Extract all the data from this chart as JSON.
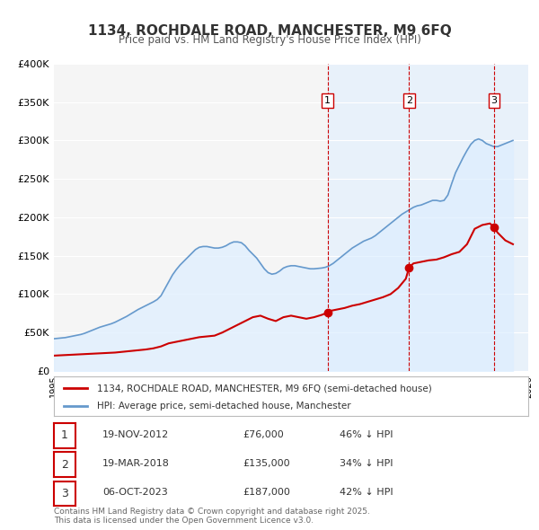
{
  "title": "1134, ROCHDALE ROAD, MANCHESTER, M9 6FQ",
  "subtitle": "Price paid vs. HM Land Registry's House Price Index (HPI)",
  "legend_label_red": "1134, ROCHDALE ROAD, MANCHESTER, M9 6FQ (semi-detached house)",
  "legend_label_blue": "HPI: Average price, semi-detached house, Manchester",
  "footer": "Contains HM Land Registry data © Crown copyright and database right 2025.\nThis data is licensed under the Open Government Licence v3.0.",
  "ylabel": "",
  "ylim": [
    0,
    400000
  ],
  "yticks": [
    0,
    50000,
    100000,
    150000,
    200000,
    250000,
    300000,
    350000,
    400000
  ],
  "ytick_labels": [
    "£0",
    "£50K",
    "£100K",
    "£150K",
    "£200K",
    "£250K",
    "£300K",
    "£350K",
    "£400K"
  ],
  "xlim_start": 1995.0,
  "xlim_end": 2026.0,
  "background_color": "#ffffff",
  "plot_bg_color": "#f5f5f5",
  "grid_color": "#ffffff",
  "sale_color": "#cc0000",
  "hpi_color": "#6699cc",
  "hpi_fill_color": "#ddeeff",
  "vline_color": "#cc0000",
  "vline_shade_color": "#ddeeff",
  "transactions": [
    {
      "num": 1,
      "date_dec": 2012.89,
      "price": 76000,
      "label": "19-NOV-2012",
      "pct": "46%"
    },
    {
      "num": 2,
      "date_dec": 2018.22,
      "price": 135000,
      "label": "19-MAR-2018",
      "pct": "34%"
    },
    {
      "num": 3,
      "date_dec": 2023.76,
      "price": 187000,
      "label": "06-OCT-2023",
      "pct": "42%"
    }
  ],
  "hpi_data": {
    "years": [
      1995.0,
      1995.25,
      1995.5,
      1995.75,
      1996.0,
      1996.25,
      1996.5,
      1996.75,
      1997.0,
      1997.25,
      1997.5,
      1997.75,
      1998.0,
      1998.25,
      1998.5,
      1998.75,
      1999.0,
      1999.25,
      1999.5,
      1999.75,
      2000.0,
      2000.25,
      2000.5,
      2000.75,
      2001.0,
      2001.25,
      2001.5,
      2001.75,
      2002.0,
      2002.25,
      2002.5,
      2002.75,
      2003.0,
      2003.25,
      2003.5,
      2003.75,
      2004.0,
      2004.25,
      2004.5,
      2004.75,
      2005.0,
      2005.25,
      2005.5,
      2005.75,
      2006.0,
      2006.25,
      2006.5,
      2006.75,
      2007.0,
      2007.25,
      2007.5,
      2007.75,
      2008.0,
      2008.25,
      2008.5,
      2008.75,
      2009.0,
      2009.25,
      2009.5,
      2009.75,
      2010.0,
      2010.25,
      2010.5,
      2010.75,
      2011.0,
      2011.25,
      2011.5,
      2011.75,
      2012.0,
      2012.25,
      2012.5,
      2012.75,
      2013.0,
      2013.25,
      2013.5,
      2013.75,
      2014.0,
      2014.25,
      2014.5,
      2014.75,
      2015.0,
      2015.25,
      2015.5,
      2015.75,
      2016.0,
      2016.25,
      2016.5,
      2016.75,
      2017.0,
      2017.25,
      2017.5,
      2017.75,
      2018.0,
      2018.25,
      2018.5,
      2018.75,
      2019.0,
      2019.25,
      2019.5,
      2019.75,
      2020.0,
      2020.25,
      2020.5,
      2020.75,
      2021.0,
      2021.25,
      2021.5,
      2021.75,
      2022.0,
      2022.25,
      2022.5,
      2022.75,
      2023.0,
      2023.25,
      2023.5,
      2023.75,
      2024.0,
      2024.25,
      2024.5,
      2024.75,
      2025.0
    ],
    "values": [
      42000,
      42500,
      43000,
      43500,
      44500,
      45500,
      46500,
      47500,
      49000,
      51000,
      53000,
      55000,
      57000,
      58500,
      60000,
      61500,
      63500,
      66000,
      68500,
      71000,
      74000,
      77000,
      80000,
      82500,
      85000,
      87500,
      90000,
      93000,
      98000,
      107000,
      116000,
      125000,
      132000,
      138000,
      143000,
      148000,
      153000,
      158000,
      161000,
      162000,
      162000,
      161000,
      160000,
      160000,
      161000,
      163000,
      166000,
      168000,
      168000,
      167000,
      163000,
      157000,
      152000,
      147000,
      140000,
      133000,
      128000,
      126000,
      127000,
      130000,
      134000,
      136000,
      137000,
      137000,
      136000,
      135000,
      134000,
      133000,
      133000,
      133500,
      134000,
      135000,
      137000,
      140000,
      144000,
      148000,
      152000,
      156000,
      160000,
      163000,
      166000,
      169000,
      171000,
      173000,
      176000,
      180000,
      184000,
      188000,
      192000,
      196000,
      200000,
      204000,
      207000,
      210000,
      213000,
      215000,
      216000,
      218000,
      220000,
      222000,
      222000,
      221000,
      222000,
      229000,
      244000,
      258000,
      268000,
      278000,
      287000,
      295000,
      300000,
      302000,
      300000,
      296000,
      294000,
      292000,
      292000,
      294000,
      296000,
      298000,
      300000
    ]
  },
  "sale_data": {
    "years": [
      1995.0,
      1995.5,
      1996.0,
      1996.5,
      1997.0,
      1997.5,
      1998.0,
      1998.5,
      1999.0,
      1999.5,
      2000.0,
      2000.5,
      2001.0,
      2001.5,
      2002.0,
      2002.5,
      2003.0,
      2003.5,
      2004.0,
      2004.5,
      2005.0,
      2005.5,
      2006.0,
      2006.5,
      2007.0,
      2007.5,
      2008.0,
      2008.5,
      2009.0,
      2009.5,
      2010.0,
      2010.5,
      2011.0,
      2011.5,
      2012.0,
      2012.5,
      2012.89,
      2013.0,
      2013.5,
      2014.0,
      2014.5,
      2015.0,
      2015.5,
      2016.0,
      2016.5,
      2017.0,
      2017.5,
      2018.0,
      2018.22,
      2018.5,
      2019.0,
      2019.5,
      2020.0,
      2020.5,
      2021.0,
      2021.5,
      2022.0,
      2022.5,
      2023.0,
      2023.5,
      2023.76,
      2024.0,
      2024.5,
      2025.0
    ],
    "values": [
      20000,
      20500,
      21000,
      21500,
      22000,
      22500,
      23000,
      23500,
      24000,
      25000,
      26000,
      27000,
      28000,
      29500,
      32000,
      36000,
      38000,
      40000,
      42000,
      44000,
      45000,
      46000,
      50000,
      55000,
      60000,
      65000,
      70000,
      72000,
      68000,
      65000,
      70000,
      72000,
      70000,
      68000,
      70000,
      73000,
      76000,
      78000,
      80000,
      82000,
      85000,
      87000,
      90000,
      93000,
      96000,
      100000,
      108000,
      120000,
      135000,
      140000,
      142000,
      144000,
      145000,
      148000,
      152000,
      155000,
      165000,
      185000,
      190000,
      192000,
      187000,
      180000,
      170000,
      165000
    ]
  }
}
